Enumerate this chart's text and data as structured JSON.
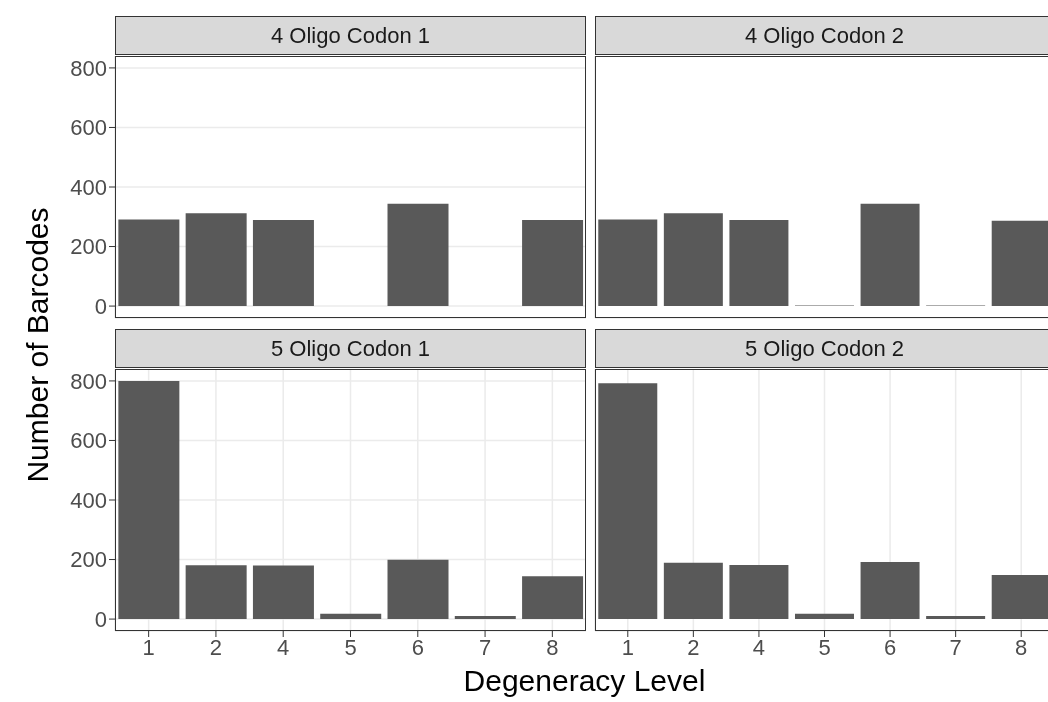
{
  "chart_data": [
    {
      "type": "bar",
      "title": "4 Oligo Codon 1",
      "ylabel": "Number of Barcodes",
      "categories": [
        "1",
        "2",
        "4",
        "5",
        "6",
        "7",
        "8"
      ],
      "values": [
        291,
        312,
        289,
        null,
        344,
        null,
        289
      ],
      "color": "#595959",
      "ylim": [
        -40,
        840
      ],
      "yticks": [
        0,
        200,
        400,
        600,
        800
      ],
      "grid": true,
      "tick_labels": "y"
    },
    {
      "type": "bar",
      "title": "4 Oligo Codon 2",
      "categories": [
        "1",
        "2",
        "4",
        "5",
        "6",
        "7",
        "8"
      ],
      "values": [
        291,
        312,
        289,
        2,
        344,
        2,
        287
      ],
      "color": "#595959",
      "ylim": [
        -40,
        840
      ],
      "yticks": [
        0,
        200,
        400,
        600,
        800
      ],
      "grid": true,
      "tick_labels": false
    },
    {
      "type": "bar",
      "title": "5 Oligo Codon 1",
      "xlabel": "Degeneracy Level",
      "categories": [
        "1",
        "2",
        "4",
        "5",
        "6",
        "7",
        "8"
      ],
      "values": [
        800,
        181,
        180,
        18,
        199,
        10,
        144
      ],
      "color": "#595959",
      "ylim": [
        -40,
        840
      ],
      "yticks": [
        0,
        200,
        400,
        600,
        800
      ],
      "grid": true
    },
    {
      "type": "bar",
      "title": "5 Oligo Codon 2",
      "categories": [
        "1",
        "2",
        "4",
        "5",
        "6",
        "7",
        "8"
      ],
      "values": [
        792,
        189,
        182,
        18,
        192,
        10,
        148
      ],
      "color": "#595959",
      "ylim": [
        -40,
        840
      ],
      "yticks": [
        0,
        200,
        400,
        600,
        800
      ],
      "grid": true,
      "tick_labels": "x"
    }
  ]
}
